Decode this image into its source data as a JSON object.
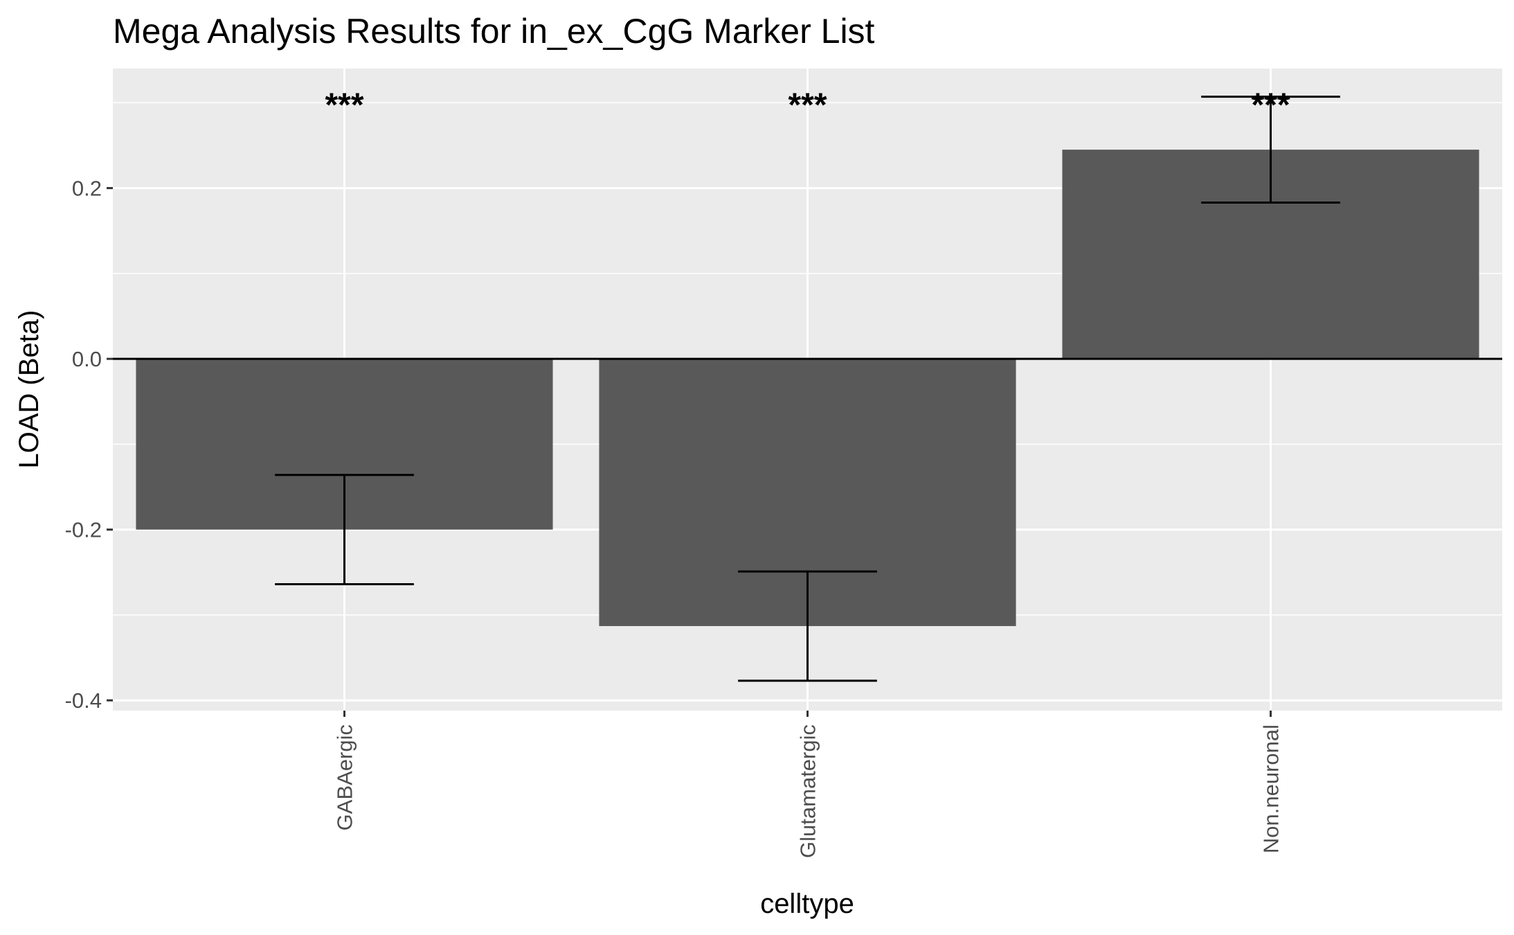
{
  "chart_data": {
    "type": "bar",
    "title": "Mega Analysis Results for in_ex_CgG Marker List",
    "xlabel": "celltype",
    "ylabel": "LOAD (Beta)",
    "categories": [
      "GABAergic",
      "Glutamatergic",
      "Non.neuronal"
    ],
    "values": [
      -0.2,
      -0.313,
      0.245
    ],
    "error_low": [
      -0.264,
      -0.377,
      0.183
    ],
    "error_high": [
      -0.136,
      -0.249,
      0.307
    ],
    "significance": [
      "***",
      "***",
      "***"
    ],
    "sig_y": 0.307,
    "ylim": [
      -0.412,
      0.34
    ],
    "yticks": [
      -0.4,
      -0.2,
      0.0,
      0.2
    ],
    "ytick_labels": [
      "-0.4",
      "-0.2",
      "0.0",
      "0.2"
    ],
    "hline": 0,
    "grid": true,
    "colors": {
      "bar": "#595959",
      "panel": "#ebebeb",
      "grid": "#ffffff",
      "errorbar": "#000000",
      "hline": "#000000"
    }
  }
}
